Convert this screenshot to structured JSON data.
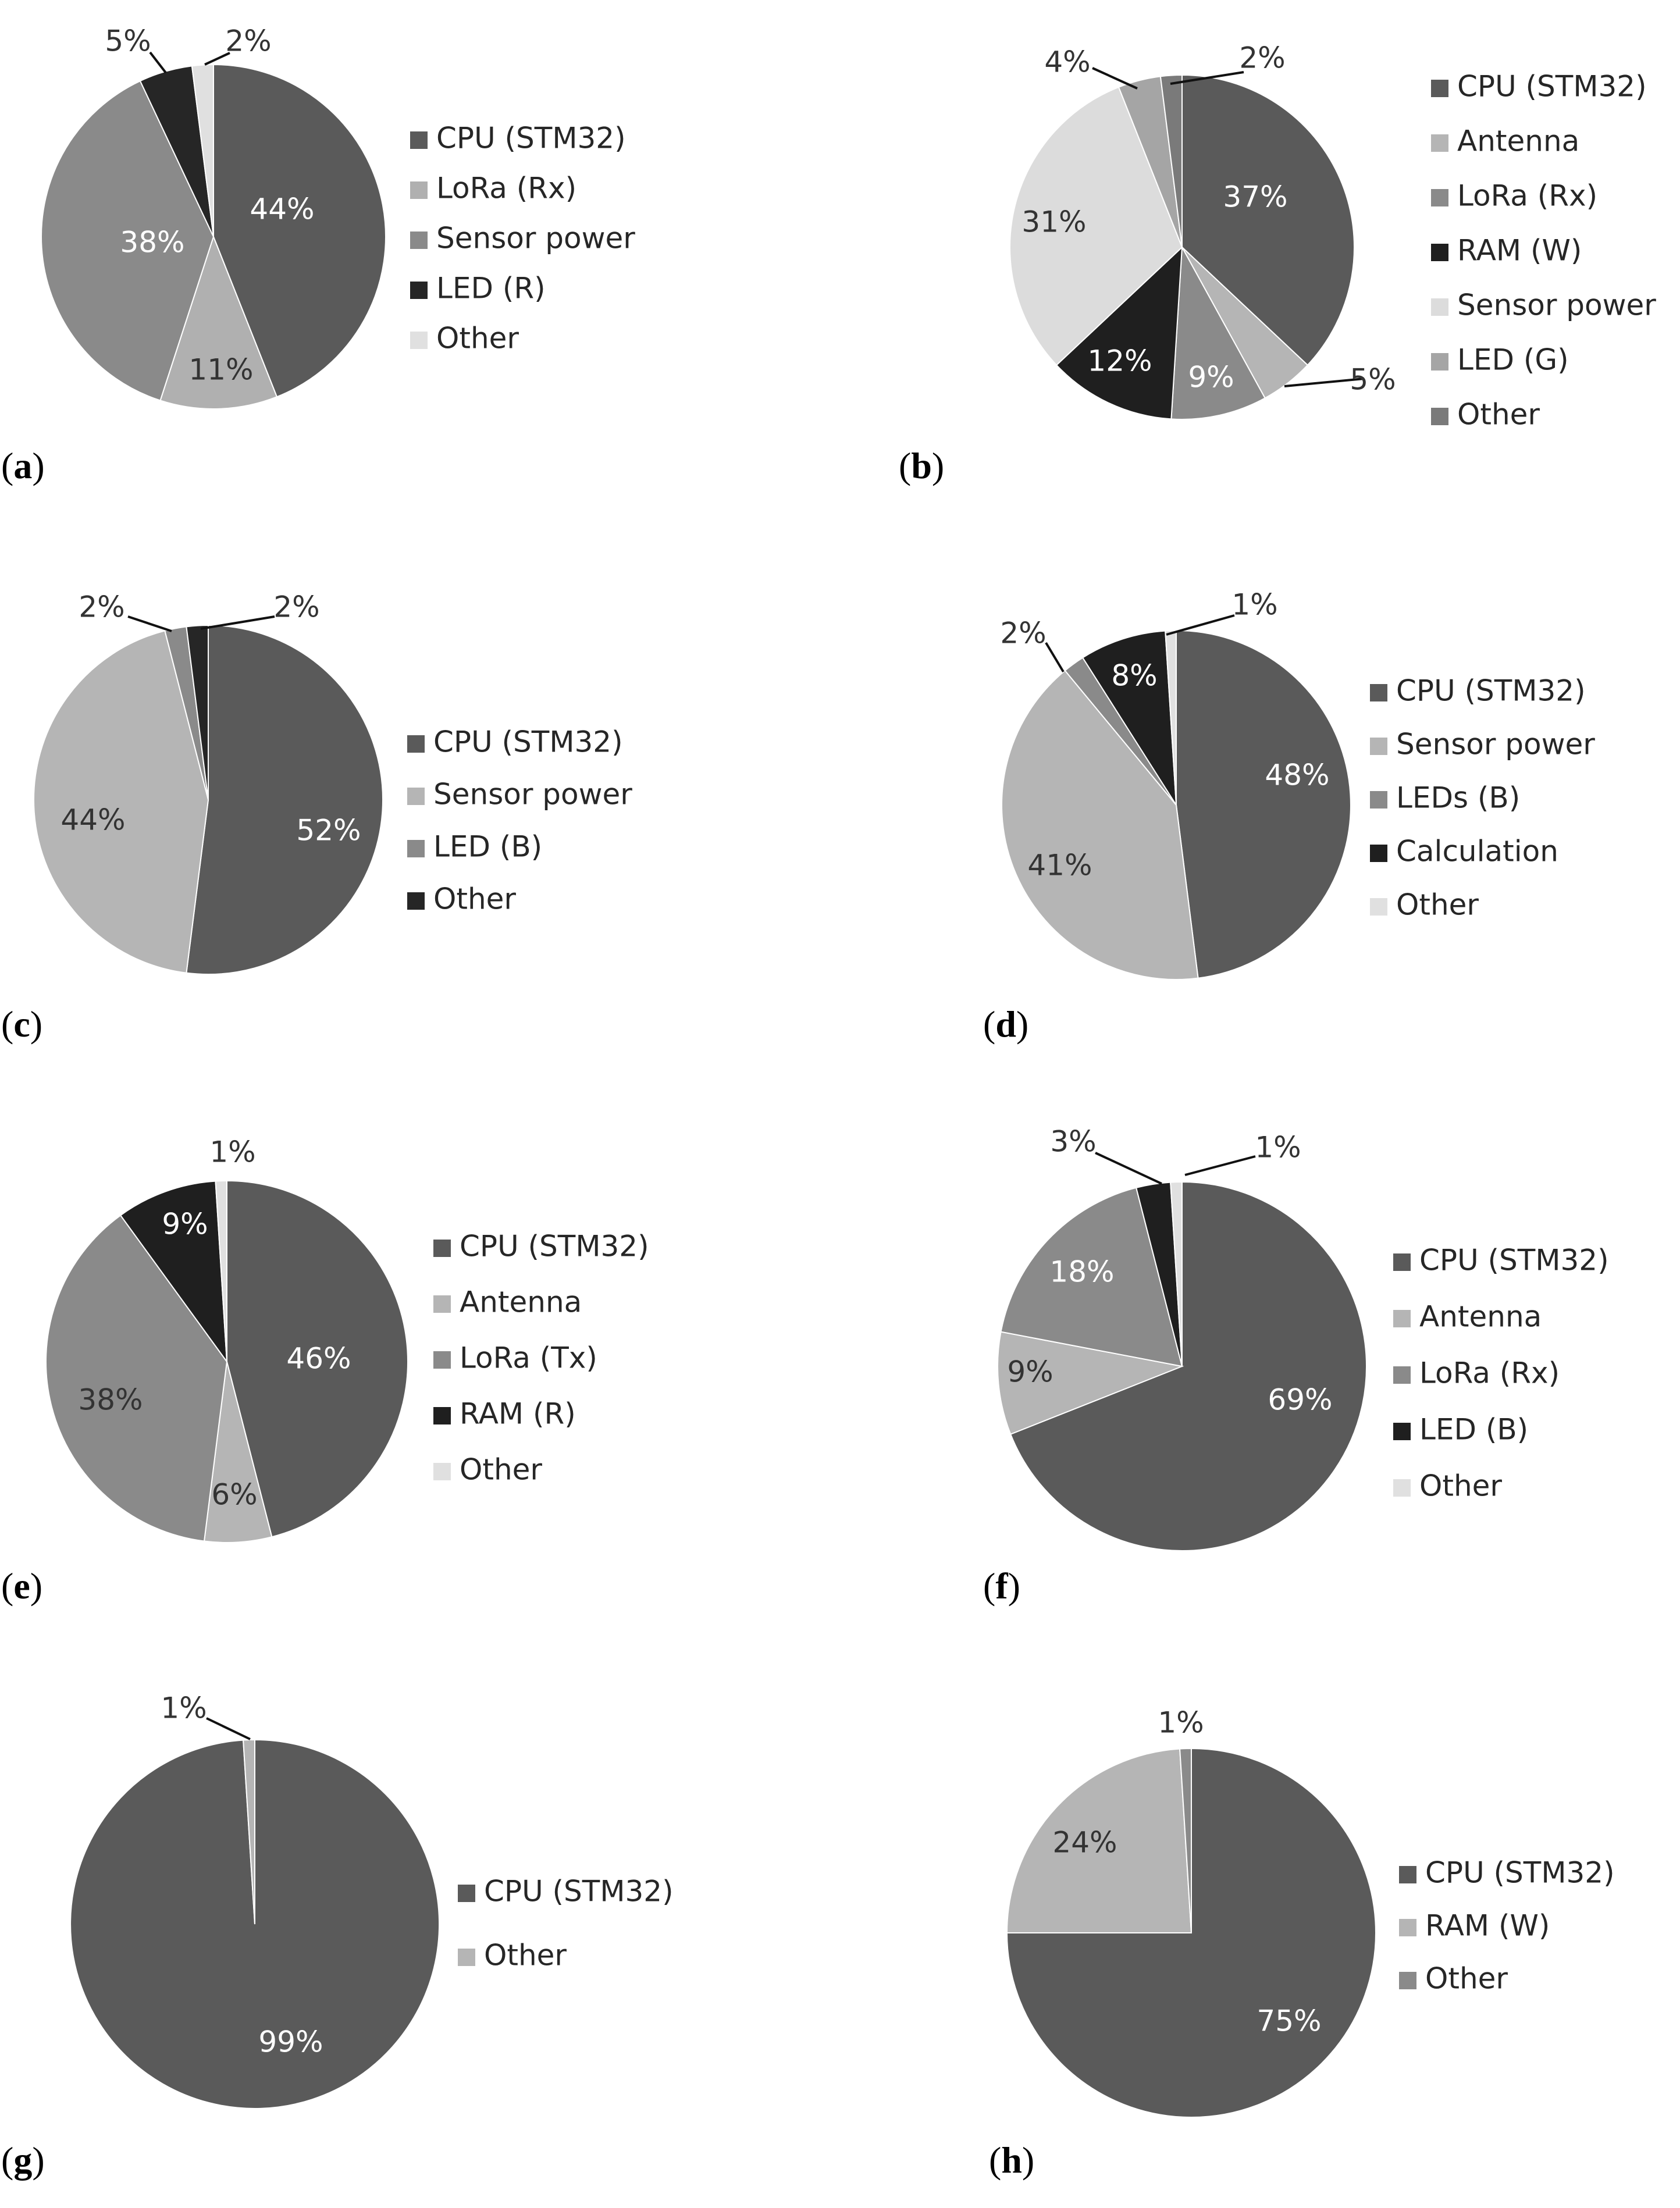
{
  "chart_data": [
    {
      "type": "pie",
      "panel_label": "a",
      "title": "",
      "categories": [
        "CPU (STM32)",
        "LoRa (Rx)",
        "Sensor power",
        "LED (R)",
        "Other"
      ],
      "values": [
        44,
        11,
        38,
        5,
        2
      ],
      "value_labels": [
        "44%",
        "11%",
        "38%",
        "5%",
        "2%"
      ],
      "colors": [
        "#5a5a5a",
        "#b0b0b0",
        "#8a8a8a",
        "#262626",
        "#e0e0e0"
      ],
      "legend": "right"
    },
    {
      "type": "pie",
      "panel_label": "b",
      "title": "",
      "categories": [
        "CPU (STM32)",
        "Antenna",
        "LoRa (Rx)",
        "RAM (W)",
        "Sensor power",
        "LED (G)",
        "Other"
      ],
      "values": [
        37,
        5,
        9,
        12,
        31,
        4,
        2
      ],
      "value_labels": [
        "37%",
        "5%",
        "9%",
        "12%",
        "31%",
        "4%",
        "2%"
      ],
      "colors": [
        "#5a5a5a",
        "#b5b5b5",
        "#8a8a8a",
        "#1f1f1f",
        "#dcdcdc",
        "#a5a5a5",
        "#7a7a7a"
      ],
      "legend": "right"
    },
    {
      "type": "pie",
      "panel_label": "c",
      "title": "",
      "categories": [
        "CPU (STM32)",
        "Sensor power",
        "LED (B)",
        "Other"
      ],
      "values": [
        52,
        44,
        2,
        2
      ],
      "value_labels": [
        "52%",
        "44%",
        "2%",
        "2%"
      ],
      "colors": [
        "#5a5a5a",
        "#b5b5b5",
        "#8a8a8a",
        "#262626"
      ],
      "legend": "right"
    },
    {
      "type": "pie",
      "panel_label": "d",
      "title": "",
      "categories": [
        "CPU (STM32)",
        "Sensor power",
        "LEDs (B)",
        "Calculation",
        "Other"
      ],
      "values": [
        48,
        41,
        2,
        8,
        1
      ],
      "value_labels": [
        "48%",
        "41%",
        "2%",
        "8%",
        "1%"
      ],
      "colors": [
        "#5a5a5a",
        "#b5b5b5",
        "#8a8a8a",
        "#1f1f1f",
        "#e0e0e0"
      ],
      "legend": "right"
    },
    {
      "type": "pie",
      "panel_label": "e",
      "title": "",
      "categories": [
        "CPU (STM32)",
        "Antenna",
        "LoRa (Tx)",
        "RAM (R)",
        "Other"
      ],
      "values": [
        46,
        6,
        38,
        9,
        1
      ],
      "value_labels": [
        "46%",
        "6%",
        "38%",
        "9%",
        "1%"
      ],
      "colors": [
        "#5a5a5a",
        "#b5b5b5",
        "#8a8a8a",
        "#1f1f1f",
        "#e0e0e0"
      ],
      "legend": "right"
    },
    {
      "type": "pie",
      "panel_label": "f",
      "title": "",
      "categories": [
        "CPU (STM32)",
        "Antenna",
        "LoRa (Rx)",
        "LED (B)",
        "Other"
      ],
      "values": [
        69,
        9,
        18,
        3,
        1
      ],
      "value_labels": [
        "69%",
        "9%",
        "18%",
        "3%",
        "1%"
      ],
      "colors": [
        "#5a5a5a",
        "#b5b5b5",
        "#8a8a8a",
        "#1f1f1f",
        "#e0e0e0"
      ],
      "legend": "right"
    },
    {
      "type": "pie",
      "panel_label": "g",
      "title": "",
      "categories": [
        "CPU (STM32)",
        "Other"
      ],
      "values": [
        99,
        1
      ],
      "value_labels": [
        "99%",
        "1%"
      ],
      "colors": [
        "#5a5a5a",
        "#b5b5b5"
      ],
      "legend": "right"
    },
    {
      "type": "pie",
      "panel_label": "h",
      "title": "",
      "categories": [
        "CPU (STM32)",
        "RAM (W)",
        "Other"
      ],
      "values": [
        75,
        24,
        1
      ],
      "value_labels": [
        "75%",
        "24%",
        "1%"
      ],
      "colors": [
        "#5a5a5a",
        "#b5b5b5",
        "#8a8a8a"
      ],
      "legend": "right"
    }
  ]
}
